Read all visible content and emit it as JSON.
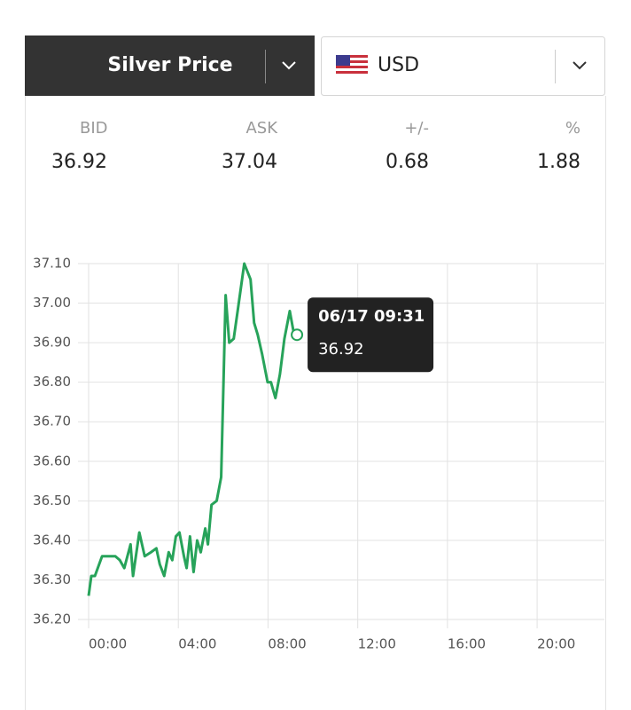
{
  "header": {
    "product": "Silver Price",
    "currency": "USD"
  },
  "quote": {
    "labels": [
      "BID",
      "ASK",
      "+/-",
      "%"
    ],
    "values": [
      36.92,
      37.04,
      0.68,
      1.88
    ],
    "colors": [
      "#222222",
      "#222222",
      "#27a35a",
      "#27a35a"
    ]
  },
  "chart_data": {
    "type": "line",
    "x": [
      0,
      0.12,
      0.28,
      0.6,
      0.99,
      1.19,
      1.39,
      1.59,
      1.87,
      1.98,
      2.26,
      2.5,
      2.78,
      3.02,
      3.17,
      3.37,
      3.57,
      3.73,
      3.89,
      4.05,
      4.25,
      4.37,
      4.52,
      4.68,
      4.84,
      5.0,
      5.2,
      5.32,
      5.48,
      5.71,
      5.91,
      6.11,
      6.27,
      6.47,
      6.67,
      6.94,
      7.22,
      7.38,
      7.54,
      7.74,
      7.98,
      8.13,
      8.33,
      8.53,
      8.73,
      8.97,
      9.13,
      9.29
    ],
    "series": [
      {
        "color": "#27a35a",
        "values": [
          36.26,
          36.31,
          36.31,
          36.36,
          36.36,
          36.36,
          36.35,
          36.33,
          36.39,
          36.31,
          36.42,
          36.36,
          36.37,
          36.38,
          36.34,
          36.31,
          36.37,
          36.35,
          36.41,
          36.42,
          36.36,
          36.33,
          36.41,
          36.32,
          36.4,
          36.37,
          36.43,
          36.39,
          36.49,
          36.5,
          36.56,
          37.02,
          36.9,
          36.91,
          36.99,
          37.1,
          37.06,
          36.95,
          36.92,
          36.87,
          36.8,
          36.8,
          36.76,
          36.82,
          36.91,
          36.98,
          36.93,
          36.92
        ]
      }
    ],
    "xlim": [
      0,
      23
    ],
    "xticks": [
      {
        "value": 0,
        "label": "00:00"
      },
      {
        "value": 4,
        "label": "04:00"
      },
      {
        "value": 8,
        "label": "08:00"
      },
      {
        "value": 12,
        "label": "12:00"
      },
      {
        "value": 16,
        "label": "16:00"
      },
      {
        "value": 20,
        "label": "20:00"
      }
    ],
    "ylim": [
      36.2,
      37.1
    ],
    "yticks": [
      {
        "value": 36.2,
        "label": "36.20"
      },
      {
        "value": 36.3,
        "label": "36.30"
      },
      {
        "value": 36.4,
        "label": "36.40"
      },
      {
        "value": 36.5,
        "label": "36.50"
      },
      {
        "value": 36.6,
        "label": "36.60"
      },
      {
        "value": 36.7,
        "label": "36.70"
      },
      {
        "value": 36.8,
        "label": "36.80"
      },
      {
        "value": 36.9,
        "label": "36.90"
      },
      {
        "value": 37.0,
        "label": "37.00"
      },
      {
        "value": 37.1,
        "label": "37.10"
      }
    ],
    "grid": true,
    "tooltip": {
      "label": "06/17 09:31",
      "value": 36.92
    }
  }
}
